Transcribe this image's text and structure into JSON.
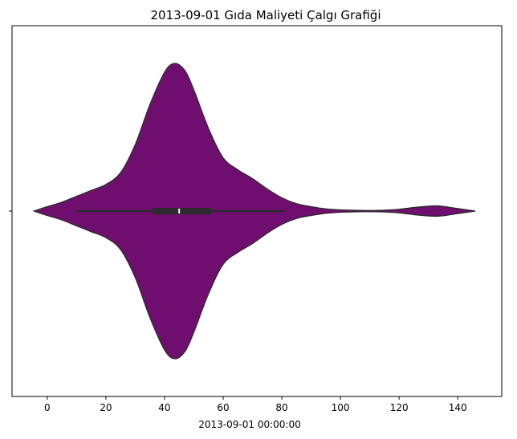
{
  "chart_data": {
    "type": "violin",
    "title": "2013-09-01 Gıda Maliyeti Çalgı Grafiği",
    "xlabel": "2013-09-01 00:00:00",
    "ylabel": "",
    "xlim": [
      -12,
      155
    ],
    "x_ticks": [
      0,
      20,
      40,
      60,
      80,
      100,
      120,
      140
    ],
    "x_tick_labels": [
      "0",
      "20",
      "40",
      "60",
      "80",
      "100",
      "120",
      "140"
    ],
    "grid": false,
    "legend": "none",
    "color": "#700e6f",
    "edge_color": "#2b2b2b",
    "density": {
      "x": [
        -4.5,
        0,
        5,
        10,
        15,
        20,
        25,
        30,
        35,
        40,
        43.5,
        47,
        50,
        55,
        60,
        65,
        70,
        75,
        80,
        85,
        90,
        95,
        100,
        105,
        110,
        115,
        120,
        125,
        130,
        132.5,
        135,
        140,
        146
      ],
      "width": [
        0,
        0.03,
        0.06,
        0.1,
        0.14,
        0.18,
        0.26,
        0.45,
        0.72,
        0.94,
        1.0,
        0.95,
        0.82,
        0.56,
        0.36,
        0.28,
        0.22,
        0.15,
        0.09,
        0.05,
        0.03,
        0.015,
        0.008,
        0.005,
        0.004,
        0.006,
        0.012,
        0.024,
        0.033,
        0.035,
        0.032,
        0.017,
        0
      ]
    },
    "box": {
      "whisker_low": 10,
      "q1": 36,
      "median": 45,
      "q3": 56,
      "whisker_high": 81
    }
  }
}
